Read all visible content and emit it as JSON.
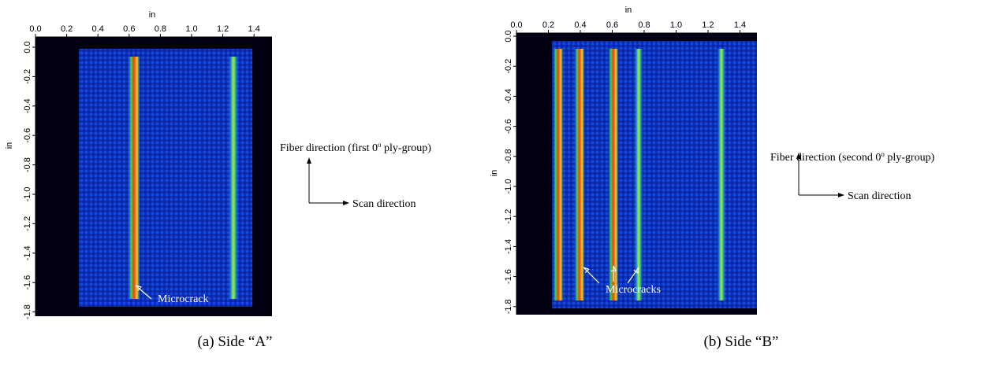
{
  "panels": [
    {
      "x_axis_label": "in",
      "y_axis_label": "in",
      "x_ticks": [
        "0.0",
        "0.2",
        "0.4",
        "0.6",
        "0.8",
        "1.0",
        "1.2",
        "1.4"
      ],
      "y_ticks": [
        "0.0",
        "-0.2",
        "-0.4",
        "-0.6",
        "-0.8",
        "-1.0",
        "-1.2",
        "-1.4",
        "-1.6",
        "-1.8"
      ],
      "annotation": "Microcrack",
      "fiber_label": "Fiber direction (first 0",
      "fiber_sup": "o",
      "fiber_label_end": " ply-group)",
      "scan_label": "Scan direction",
      "caption": "(a) Side “A”"
    },
    {
      "x_axis_label": "in",
      "y_axis_label": "in",
      "x_ticks": [
        "0.0",
        "0.2",
        "0.4",
        "0.6",
        "0.8",
        "1.0",
        "1.2",
        "1.4"
      ],
      "y_ticks": [
        "0.0",
        "-0.2",
        "-0.4",
        "-0.6",
        "-0.8",
        "-1.0",
        "-1.2",
        "-1.4",
        "-1.6",
        "-1.8"
      ],
      "annotation": "Microcracks",
      "fiber_label": "Fiber direction (second 0",
      "fiber_sup": "o",
      "fiber_label_end": " ply-group)",
      "scan_label": "Scan direction",
      "caption": "(b) Side “B”"
    }
  ]
}
